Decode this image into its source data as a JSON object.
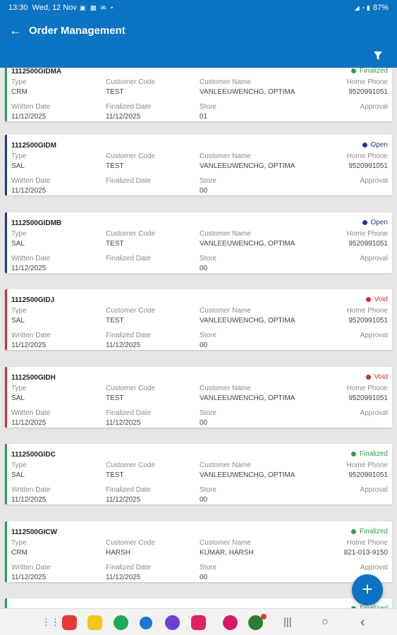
{
  "status_bar": {
    "time": "13:30",
    "date": "Wed, 12 Nov",
    "battery": "87%"
  },
  "header": {
    "title": "Order Management"
  },
  "labels": {
    "type": "Type",
    "customer_code": "Customer Code",
    "customer_name": "Customer Name",
    "home_phone": "Home Phone",
    "written_date": "Written Date",
    "finalized_date": "Finalized Date",
    "store": "Store",
    "approval": "Approval"
  },
  "status_colors": {
    "Finalized": "#2e9e4f",
    "Open": "#1f3a7a",
    "Void": "#d32f2f"
  },
  "orders": [
    {
      "id": "1112500GIDMA",
      "status": "Finalized",
      "type": "CRM",
      "customer_code": "TEST",
      "customer_name": "VANLEEUWENCHG, OPTIMA",
      "home_phone": "9520991051",
      "written_date": "11/12/2025",
      "finalized_date": "11/12/2025",
      "store": "01"
    },
    {
      "id": "1112500GIDM",
      "status": "Open",
      "type": "SAL",
      "customer_code": "TEST",
      "customer_name": "VANLEEUWENCHG, OPTIMA",
      "home_phone": "9520991051",
      "written_date": "11/12/2025",
      "finalized_date": "",
      "store": "00"
    },
    {
      "id": "1112500GIDMB",
      "status": "Open",
      "type": "SAL",
      "customer_code": "TEST",
      "customer_name": "VANLEEUWENCHG, OPTIMA",
      "home_phone": "9520991051",
      "written_date": "11/12/2025",
      "finalized_date": "",
      "store": "00"
    },
    {
      "id": "1112500GIDJ",
      "status": "Void",
      "type": "SAL",
      "customer_code": "TEST",
      "customer_name": "VANLEEUWENCHG, OPTIMA",
      "home_phone": "9520991051",
      "written_date": "11/12/2025",
      "finalized_date": "11/12/2025",
      "store": "00"
    },
    {
      "id": "1112500GIDH",
      "status": "Void",
      "type": "SAL",
      "customer_code": "TEST",
      "customer_name": "VANLEEUWENCHG, OPTIMA",
      "home_phone": "9520991051",
      "written_date": "11/12/2025",
      "finalized_date": "11/12/2025",
      "store": "00"
    },
    {
      "id": "1112500GIDC",
      "status": "Finalized",
      "type": "SAL",
      "customer_code": "TEST",
      "customer_name": "VANLEEUWENCHG, OPTIMA",
      "home_phone": "9520991051",
      "written_date": "11/12/2025",
      "finalized_date": "11/12/2025",
      "store": "00"
    },
    {
      "id": "1112500GICW",
      "status": "Finalized",
      "type": "CRM",
      "customer_code": "HARSH",
      "customer_name": "KUMAR, HARSH",
      "home_phone": "821-013-9150",
      "written_date": "11/12/2025",
      "finalized_date": "11/12/2025",
      "store": "00"
    },
    {
      "id": "",
      "status": "Finalized",
      "type": "",
      "customer_code": "",
      "customer_name": "",
      "home_phone": "",
      "written_date": "",
      "finalized_date": "",
      "store": ""
    }
  ],
  "fab": {
    "label": "+"
  },
  "nav_bar": {
    "app_icons": [
      "grid-icon",
      "app-red-icon",
      "app-yellow-icon",
      "app-green-icon",
      "chat-icon",
      "app-purple-icon",
      "app-camera-icon",
      "app-flower-icon",
      "app-globe-icon"
    ],
    "recents_glyph": "|||",
    "home_glyph": "○",
    "back_glyph": "‹"
  }
}
